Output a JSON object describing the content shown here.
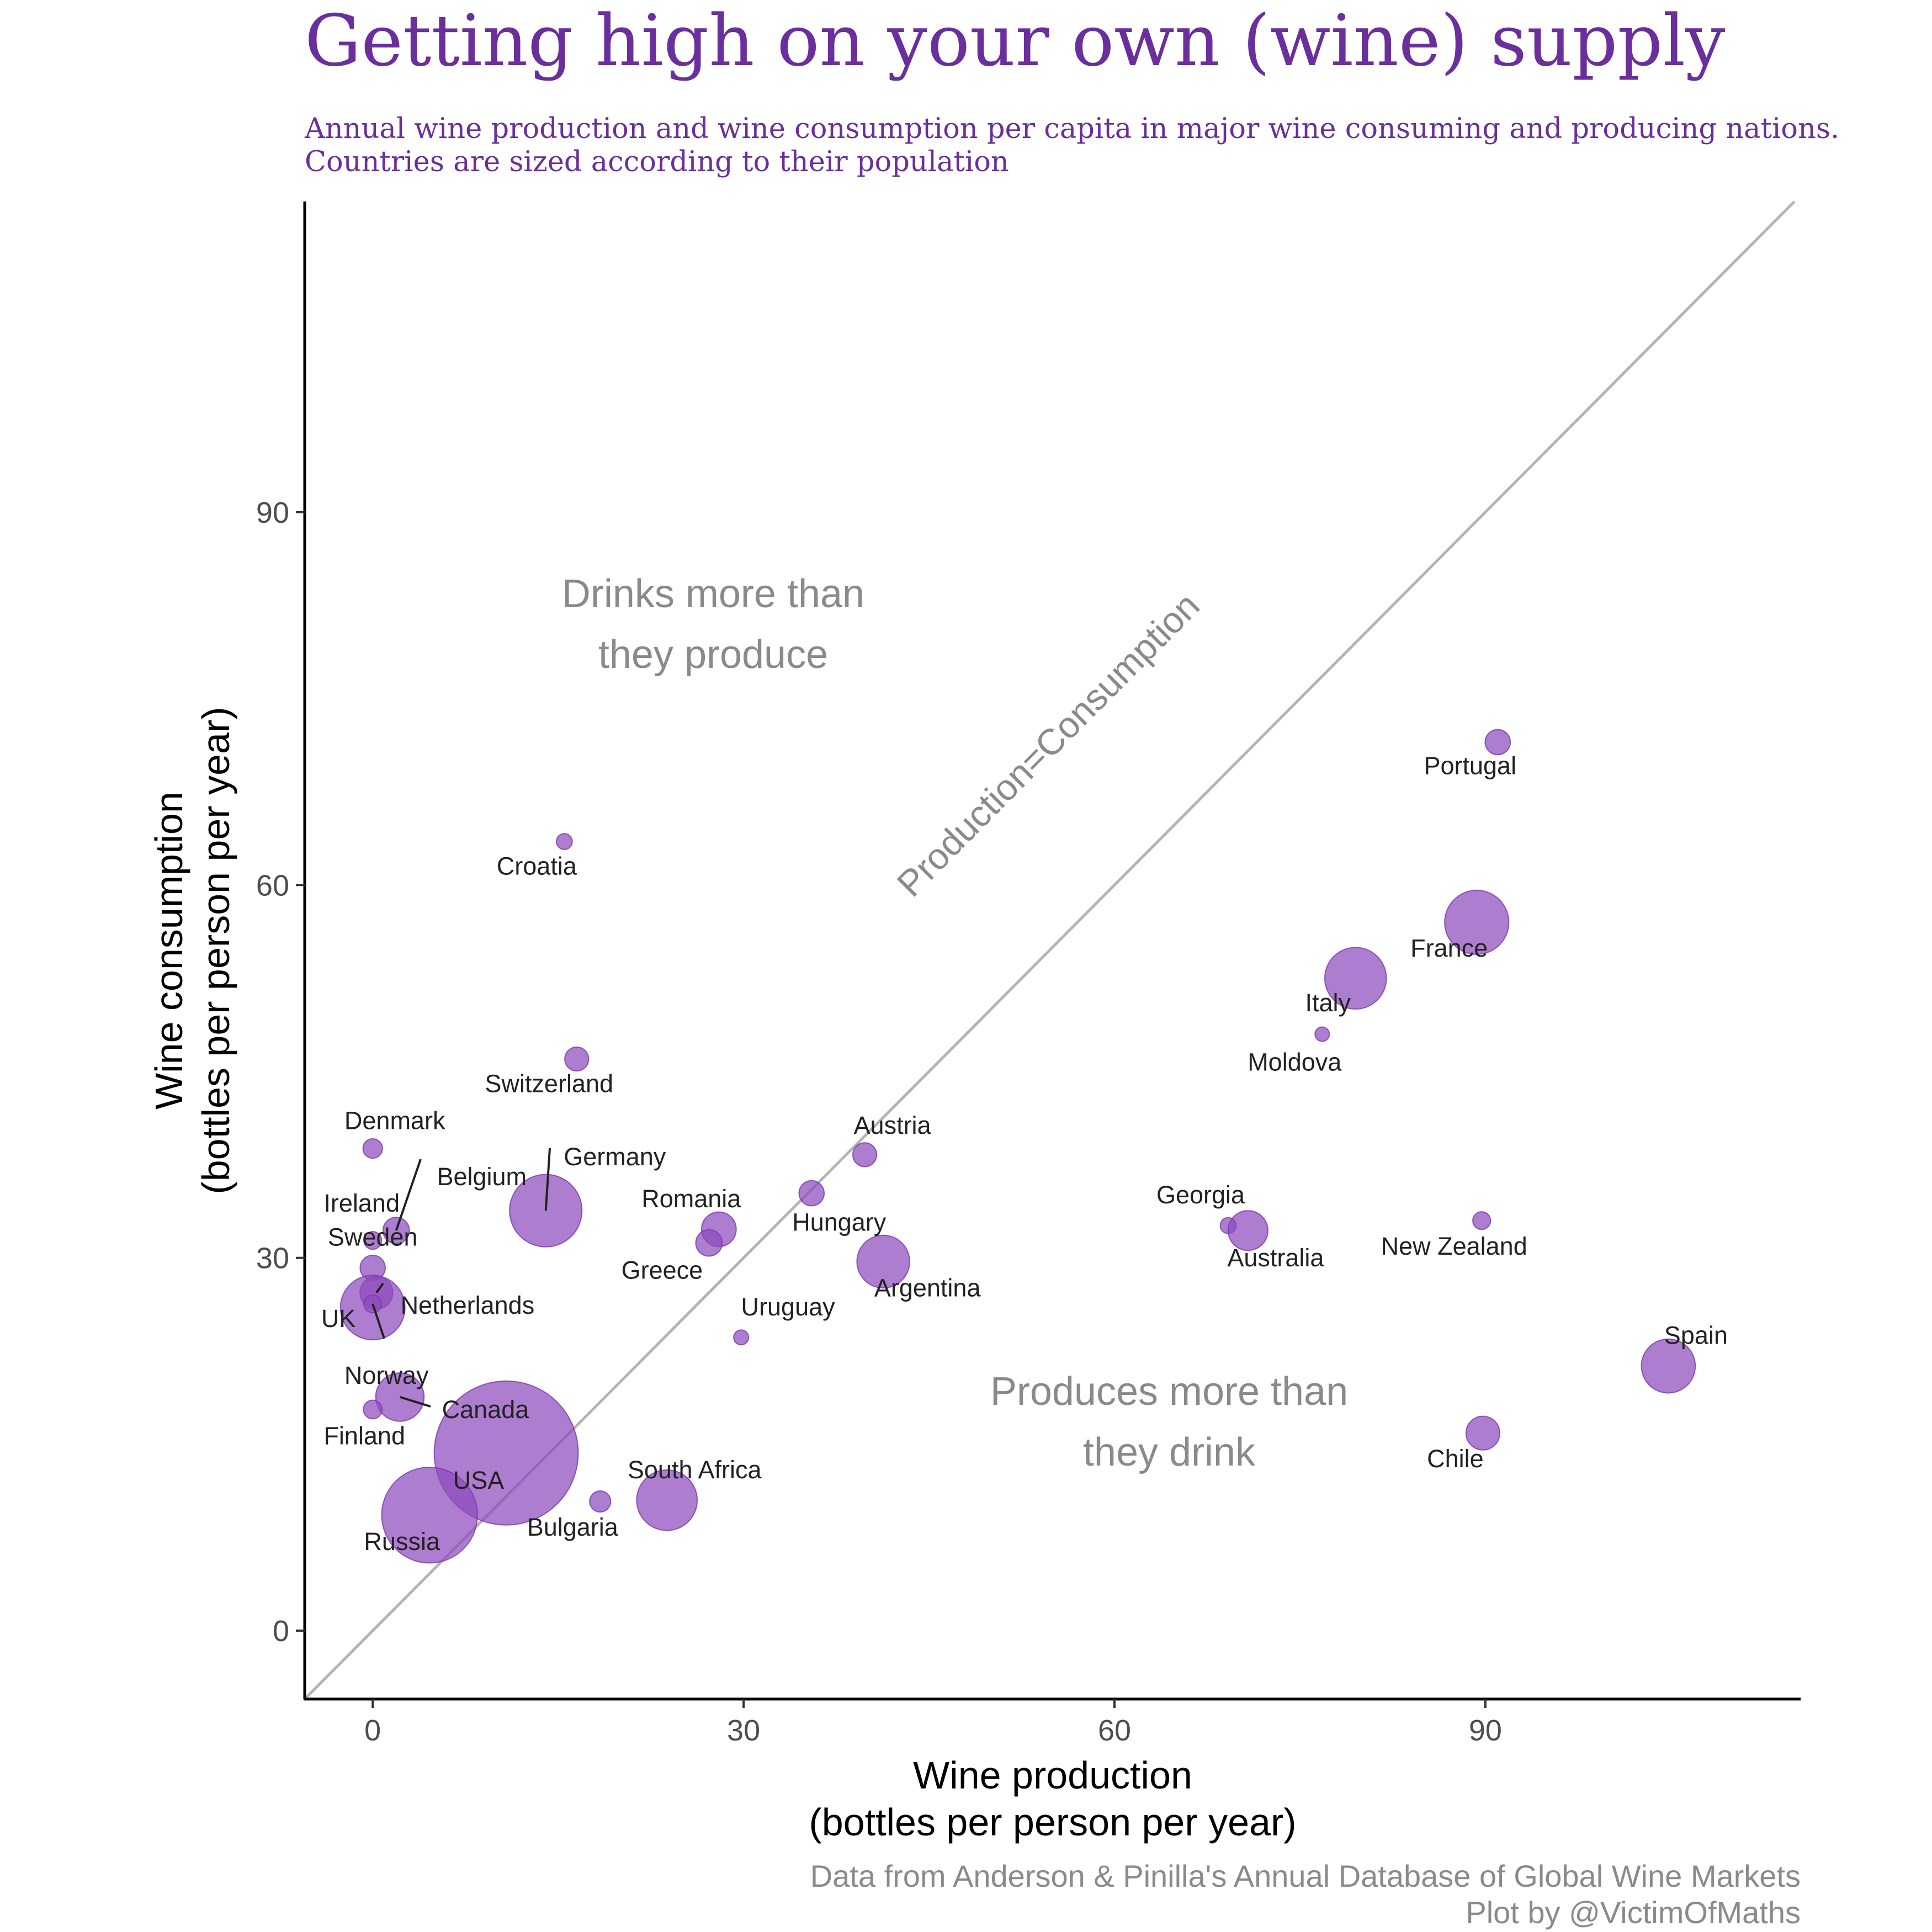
{
  "chart_data": {
    "type": "scatter",
    "title": "Getting high on your own (wine) supply",
    "subtitle_lines": [
      "Annual wine production and wine consumption per capita in major wine consuming and producing nations.",
      "Countries are sized according to their population"
    ],
    "xlabel_lines": [
      "Wine production",
      "(bottles per person per year)"
    ],
    "ylabel_lines": [
      "Wine consumption",
      "(bottles per person per year)"
    ],
    "xlim": [
      -5.5,
      115.5
    ],
    "ylim": [
      -5.5,
      115
    ],
    "x_ticks": [
      0,
      30,
      60,
      90
    ],
    "y_ticks": [
      0,
      30,
      60,
      90
    ],
    "grid": false,
    "legend": "none",
    "reference_line": {
      "label": "Production=Consumption",
      "slope": 1,
      "intercept": 0
    },
    "region_labels": [
      {
        "lines": [
          "Drinks more than",
          "they produce"
        ]
      },
      {
        "lines": [
          "Produces more than",
          "they drink"
        ]
      }
    ],
    "caption_lines": [
      "Data from Anderson & Pinilla's Annual Database of Global Wine Markets",
      "Plot by @VictimOfMaths"
    ],
    "colors": {
      "point": "#8e4bbd",
      "title": "#6a2f9c",
      "reference_line": "#b3b3b3"
    },
    "points": [
      {
        "country": "Portugal",
        "x": 91,
        "y": 71.5,
        "size": 10
      },
      {
        "country": "Croatia",
        "x": 15.5,
        "y": 63.5,
        "size": 4
      },
      {
        "country": "France",
        "x": 89.3,
        "y": 57,
        "size": 65
      },
      {
        "country": "Italy",
        "x": 79.5,
        "y": 52.5,
        "size": 60
      },
      {
        "country": "Moldova",
        "x": 76.8,
        "y": 48,
        "size": 3
      },
      {
        "country": "Switzerland",
        "x": 16.5,
        "y": 46,
        "size": 9
      },
      {
        "country": "Denmark",
        "x": 0,
        "y": 38.8,
        "size": 6
      },
      {
        "country": "Austria",
        "x": 39.8,
        "y": 38.3,
        "size": 9
      },
      {
        "country": "Germany",
        "x": 14,
        "y": 33.8,
        "size": 83
      },
      {
        "country": "Hungary",
        "x": 35.5,
        "y": 35.2,
        "size": 10
      },
      {
        "country": "Belgium",
        "x": 1.9,
        "y": 32.2,
        "size": 11
      },
      {
        "country": "Ireland",
        "x": 0,
        "y": 31.4,
        "size": 5
      },
      {
        "country": "Romania",
        "x": 28,
        "y": 32.3,
        "size": 19
      },
      {
        "country": "Greece",
        "x": 27.2,
        "y": 31.2,
        "size": 11
      },
      {
        "country": "Georgia",
        "x": 69.2,
        "y": 32.6,
        "size": 4
      },
      {
        "country": "Australia",
        "x": 70.8,
        "y": 32.2,
        "size": 25
      },
      {
        "country": "New Zealand",
        "x": 89.7,
        "y": 33,
        "size": 5
      },
      {
        "country": "Sweden",
        "x": 0,
        "y": 29.2,
        "size": 10
      },
      {
        "country": "Netherlands",
        "x": 0.3,
        "y": 27.2,
        "size": 17
      },
      {
        "country": "UK",
        "x": 0,
        "y": 26,
        "size": 66
      },
      {
        "country": "Argentina",
        "x": 41.3,
        "y": 29.7,
        "size": 44
      },
      {
        "country": "Uruguay",
        "x": 29.8,
        "y": 23.6,
        "size": 3.5
      },
      {
        "country": "Norway",
        "x": 0,
        "y": 26.3,
        "size": 5
      },
      {
        "country": "Spain",
        "x": 104.8,
        "y": 21.3,
        "size": 46
      },
      {
        "country": "Canada",
        "x": 2.2,
        "y": 18.8,
        "size": 37
      },
      {
        "country": "Finland",
        "x": 0,
        "y": 17.8,
        "size": 5.5
      },
      {
        "country": "Chile",
        "x": 89.8,
        "y": 15.9,
        "size": 18
      },
      {
        "country": "USA",
        "x": 10.8,
        "y": 14.3,
        "size": 328
      },
      {
        "country": "South Africa",
        "x": 23.8,
        "y": 10.5,
        "size": 58
      },
      {
        "country": "Bulgaria",
        "x": 18.4,
        "y": 10.4,
        "size": 7
      },
      {
        "country": "Russia",
        "x": 4.6,
        "y": 9.3,
        "size": 145
      }
    ]
  }
}
